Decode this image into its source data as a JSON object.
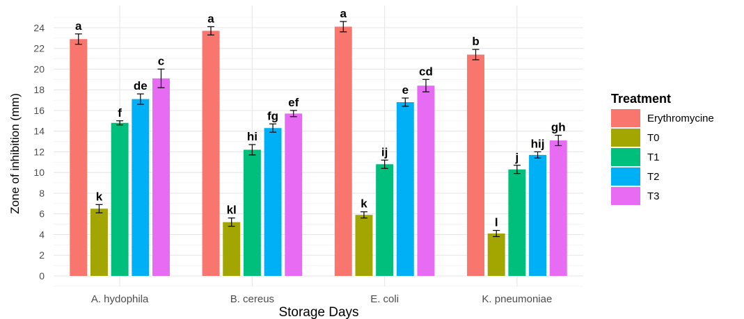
{
  "chart_data": {
    "type": "bar",
    "title": "",
    "xlabel": "Storage Days",
    "ylabel": "Zone of inhibition (mm)",
    "ylim": [
      0,
      25
    ],
    "yticks": [
      0,
      2,
      4,
      6,
      8,
      10,
      12,
      14,
      16,
      18,
      20,
      22,
      24
    ],
    "grid": true,
    "legend_position": "right",
    "legend_title": "Treatment",
    "categories": [
      "A. hydophila",
      "B. cereus",
      "E. coli",
      "K. pneumoniae"
    ],
    "series": [
      {
        "name": "Erythromycine",
        "color": "#F8766D",
        "values": [
          22.9,
          23.7,
          24.1,
          21.4
        ],
        "errors": [
          0.5,
          0.4,
          0.5,
          0.5
        ],
        "labels": [
          "a",
          "a",
          "a",
          "b"
        ]
      },
      {
        "name": "T0",
        "color": "#A3A500",
        "values": [
          6.5,
          5.2,
          5.9,
          4.1
        ],
        "errors": [
          0.4,
          0.4,
          0.3,
          0.3
        ],
        "labels": [
          "k",
          "kl",
          "k",
          "l"
        ]
      },
      {
        "name": "T1",
        "color": "#00BF7D",
        "values": [
          14.8,
          12.2,
          10.8,
          10.3
        ],
        "errors": [
          0.2,
          0.5,
          0.4,
          0.4
        ],
        "labels": [
          "f",
          "hi",
          "ij",
          "j"
        ]
      },
      {
        "name": "T2",
        "color": "#00B0F6",
        "values": [
          17.1,
          14.3,
          16.8,
          11.7
        ],
        "errors": [
          0.5,
          0.4,
          0.4,
          0.3
        ],
        "labels": [
          "de",
          "fg",
          "e",
          "hij"
        ]
      },
      {
        "name": "T3",
        "color": "#E76BF3",
        "values": [
          19.1,
          15.7,
          18.4,
          13.1
        ],
        "errors": [
          0.9,
          0.3,
          0.6,
          0.5
        ],
        "labels": [
          "c",
          "ef",
          "cd",
          "gh"
        ]
      }
    ]
  }
}
